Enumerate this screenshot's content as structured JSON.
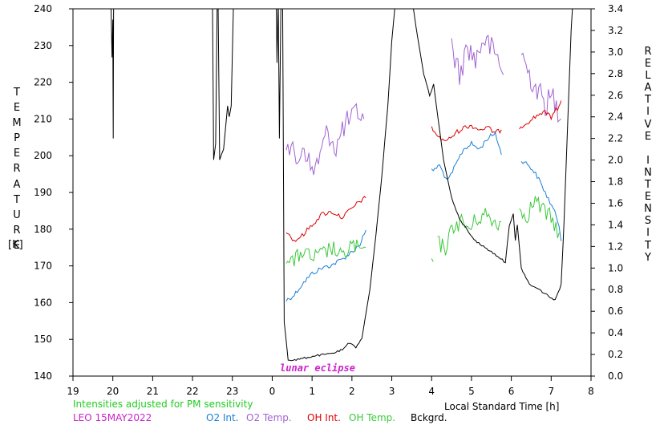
{
  "chart_data": {
    "type": "line",
    "xlabel": "Local Standard Time [h]",
    "ylabel_left": "TEMPERATURE",
    "ylabel_left_unit": "[K]",
    "ylabel_right": "RELATIVE INTENSITY",
    "x_ticks": [
      "19",
      "20",
      "21",
      "22",
      "23",
      "0",
      "1",
      "2",
      "3",
      "4",
      "5",
      "6",
      "7",
      "8"
    ],
    "x_range": [
      19,
      32
    ],
    "ylim_left": [
      140,
      240
    ],
    "ylim_right": [
      0.0,
      3.4
    ],
    "y_ticks_left": [
      140,
      150,
      160,
      170,
      180,
      190,
      200,
      210,
      220,
      230,
      240
    ],
    "y_ticks_right": [
      "0.0",
      "0.2",
      "0.4",
      "0.6",
      "0.8",
      "1.0",
      "1.2",
      "1.4",
      "1.6",
      "1.8",
      "2.0",
      "2.2",
      "2.4",
      "2.6",
      "2.8",
      "3.0",
      "3.2",
      "3.4"
    ],
    "annotation": "lunar eclipse",
    "note": "Intensities adjusted for PM sensitivity",
    "site_date": "LEO 15MAY2022",
    "grid": false,
    "colors": {
      "o2_int": "#1a7fd6",
      "o2_temp": "#a064d2",
      "oh_int": "#dc0000",
      "oh_temp": "#3cc83c",
      "bckgrd": "#000000",
      "note": "#22cc22",
      "site": "#cc22cc",
      "annotation": "#cc22cc"
    },
    "series": [
      {
        "name": "O2 Int.",
        "axis": "right",
        "segments": [
          [
            [
              24.35,
              0.7
            ],
            [
              24.55,
              0.75
            ],
            [
              24.75,
              0.85
            ],
            [
              25.0,
              0.95
            ],
            [
              25.25,
              1.0
            ],
            [
              25.5,
              1.03
            ],
            [
              25.75,
              1.08
            ],
            [
              26.0,
              1.15
            ],
            [
              26.2,
              1.22
            ],
            [
              26.35,
              1.35
            ]
          ],
          [
            [
              28.0,
              1.9
            ],
            [
              28.2,
              1.95
            ],
            [
              28.4,
              1.8
            ],
            [
              28.6,
              1.95
            ],
            [
              28.8,
              2.1
            ],
            [
              29.0,
              2.15
            ],
            [
              29.2,
              2.1
            ],
            [
              29.4,
              2.2
            ],
            [
              29.6,
              2.25
            ],
            [
              29.75,
              2.05
            ]
          ],
          [
            [
              30.25,
              2.0
            ],
            [
              30.45,
              1.95
            ],
            [
              30.65,
              1.85
            ],
            [
              30.85,
              1.7
            ],
            [
              31.05,
              1.55
            ],
            [
              31.2,
              1.4
            ],
            [
              31.25,
              1.25
            ]
          ]
        ]
      },
      {
        "name": "O2 Temp.",
        "axis": "left",
        "segments": [
          [
            [
              24.35,
              205
            ],
            [
              24.6,
              198
            ],
            [
              24.8,
              203
            ],
            [
              25.0,
              195
            ],
            [
              25.2,
              200
            ],
            [
              25.4,
              207
            ],
            [
              25.6,
              202
            ],
            [
              25.8,
              208
            ],
            [
              26.0,
              210
            ],
            [
              26.15,
              212
            ],
            [
              26.3,
              210
            ]
          ],
          [
            [
              28.5,
              230
            ],
            [
              28.7,
              222
            ],
            [
              28.9,
              230
            ],
            [
              29.1,
              226
            ],
            [
              29.3,
              232
            ],
            [
              29.5,
              229
            ],
            [
              29.7,
              226
            ],
            [
              29.8,
              222
            ]
          ],
          [
            [
              30.25,
              228
            ],
            [
              30.45,
              222
            ],
            [
              30.65,
              218
            ],
            [
              30.85,
              214
            ],
            [
              31.05,
              216
            ],
            [
              31.25,
              210
            ]
          ]
        ]
      },
      {
        "name": "OH Int.",
        "axis": "right",
        "segments": [
          [
            [
              24.35,
              1.35
            ],
            [
              24.55,
              1.25
            ],
            [
              24.75,
              1.3
            ],
            [
              25.0,
              1.4
            ],
            [
              25.25,
              1.5
            ],
            [
              25.5,
              1.52
            ],
            [
              25.75,
              1.47
            ],
            [
              26.0,
              1.55
            ],
            [
              26.2,
              1.62
            ],
            [
              26.35,
              1.65
            ]
          ],
          [
            [
              28.0,
              2.3
            ],
            [
              28.2,
              2.2
            ],
            [
              28.4,
              2.18
            ],
            [
              28.6,
              2.25
            ],
            [
              28.8,
              2.3
            ],
            [
              29.0,
              2.32
            ],
            [
              29.2,
              2.28
            ],
            [
              29.4,
              2.3
            ],
            [
              29.6,
              2.25
            ],
            [
              29.75,
              2.28
            ]
          ],
          [
            [
              30.2,
              2.3
            ],
            [
              30.4,
              2.35
            ],
            [
              30.6,
              2.4
            ],
            [
              30.8,
              2.45
            ],
            [
              31.0,
              2.4
            ],
            [
              31.2,
              2.5
            ],
            [
              31.25,
              2.55
            ]
          ]
        ]
      },
      {
        "name": "OH Temp.",
        "axis": "left",
        "segments": [
          [
            [
              24.35,
              173
            ],
            [
              24.55,
              171
            ],
            [
              24.75,
              174
            ],
            [
              25.0,
              172
            ],
            [
              25.25,
              173
            ],
            [
              25.5,
              175
            ],
            [
              25.75,
              172
            ],
            [
              26.0,
              176
            ],
            [
              26.2,
              174
            ],
            [
              26.35,
              175
            ]
          ],
          [
            [
              28.0,
              172
            ]
          ],
          [
            [
              28.15,
              176
            ],
            [
              28.35,
              175
            ],
            [
              28.55,
              181
            ],
            [
              28.75,
              182
            ],
            [
              28.95,
              180
            ],
            [
              29.15,
              183
            ],
            [
              29.35,
              184
            ],
            [
              29.55,
              182
            ],
            [
              29.75,
              182
            ]
          ],
          [
            [
              30.2,
              185
            ],
            [
              30.4,
              184
            ],
            [
              30.6,
              188
            ],
            [
              30.8,
              185
            ],
            [
              31.0,
              183
            ],
            [
              31.2,
              179
            ]
          ]
        ]
      },
      {
        "name": "Bckgrd.",
        "axis": "right",
        "segments": [
          [
            [
              19.95,
              3.5
            ],
            [
              19.98,
              2.95
            ],
            [
              20.0,
              3.3
            ],
            [
              20.01,
              2.2
            ],
            [
              20.02,
              3.5
            ]
          ],
          [
            [
              22.5,
              3.5
            ],
            [
              22.53,
              2.0
            ],
            [
              22.58,
              2.15
            ],
            [
              22.62,
              3.5
            ]
          ],
          [
            [
              22.64,
              3.5
            ],
            [
              22.68,
              2.0
            ],
            [
              22.78,
              2.1
            ],
            [
              22.88,
              2.5
            ],
            [
              22.92,
              2.4
            ],
            [
              22.97,
              2.5
            ],
            [
              23.03,
              3.5
            ]
          ],
          [
            [
              24.1,
              3.5
            ],
            [
              24.12,
              2.9
            ],
            [
              24.15,
              3.5
            ],
            [
              24.18,
              2.2
            ],
            [
              24.22,
              3.5
            ]
          ],
          [
            [
              24.26,
              3.5
            ],
            [
              24.3,
              0.5
            ],
            [
              24.4,
              0.15
            ],
            [
              24.6,
              0.15
            ],
            [
              24.85,
              0.17
            ],
            [
              25.1,
              0.19
            ],
            [
              25.35,
              0.2
            ],
            [
              25.6,
              0.22
            ],
            [
              25.8,
              0.25
            ],
            [
              25.9,
              0.3
            ],
            [
              26.0,
              0.29
            ],
            [
              26.1,
              0.27
            ],
            [
              26.25,
              0.35
            ],
            [
              26.45,
              0.8
            ],
            [
              26.6,
              1.3
            ],
            [
              26.75,
              1.85
            ],
            [
              26.9,
              2.5
            ],
            [
              27.0,
              3.1
            ],
            [
              27.1,
              3.5
            ]
          ],
          [
            [
              27.5,
              3.5
            ],
            [
              27.6,
              3.25
            ],
            [
              27.8,
              2.8
            ],
            [
              27.95,
              2.6
            ],
            [
              28.05,
              2.7
            ],
            [
              28.12,
              2.5
            ],
            [
              28.3,
              2.0
            ],
            [
              28.5,
              1.65
            ],
            [
              28.7,
              1.45
            ],
            [
              28.9,
              1.35
            ],
            [
              29.1,
              1.25
            ],
            [
              29.3,
              1.2
            ],
            [
              29.5,
              1.15
            ],
            [
              29.7,
              1.1
            ],
            [
              29.85,
              1.05
            ],
            [
              29.95,
              1.4
            ],
            [
              30.05,
              1.5
            ],
            [
              30.1,
              1.25
            ],
            [
              30.15,
              1.4
            ],
            [
              30.25,
              1.0
            ],
            [
              30.45,
              0.85
            ],
            [
              30.7,
              0.8
            ],
            [
              30.9,
              0.75
            ],
            [
              31.1,
              0.7
            ],
            [
              31.25,
              0.85
            ],
            [
              31.32,
              1.4
            ],
            [
              31.4,
              2.2
            ],
            [
              31.5,
              3.2
            ],
            [
              31.55,
              3.5
            ]
          ]
        ]
      }
    ]
  }
}
